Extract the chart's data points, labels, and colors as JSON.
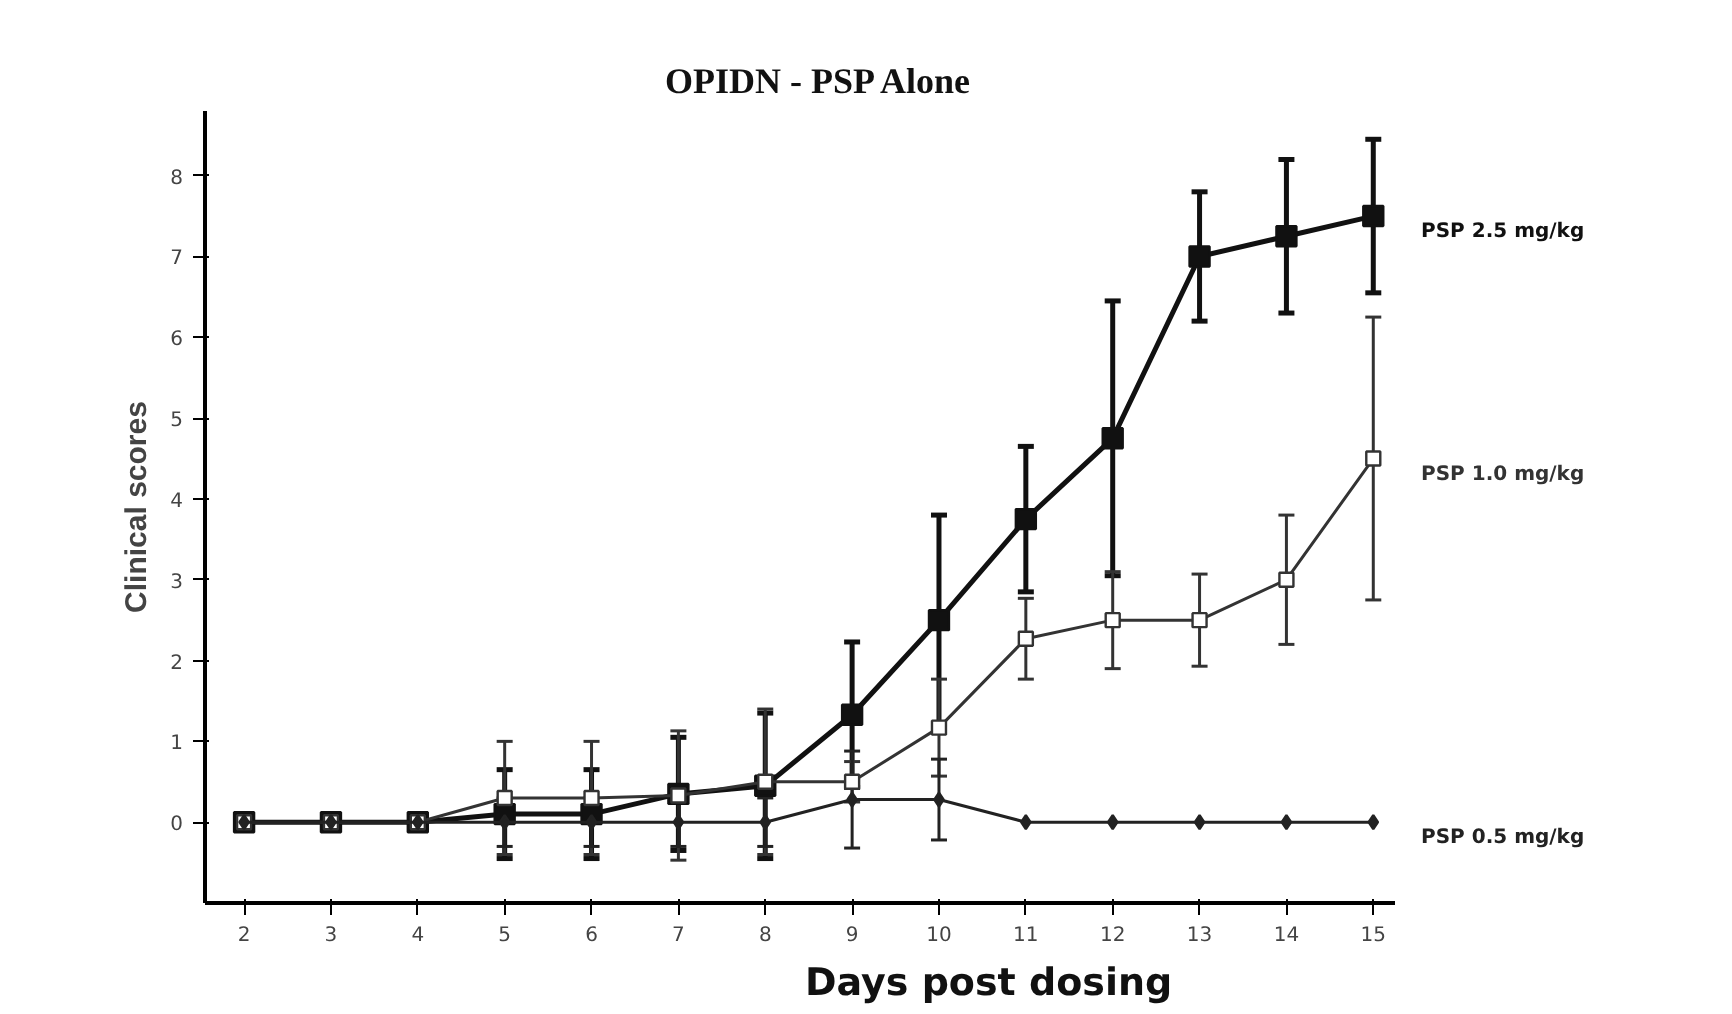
{
  "chart_data": {
    "type": "line",
    "title": "OPIDN - PSP Alone",
    "xlabel": "Days post dosing",
    "ylabel": "Clinical scores",
    "x": [
      2,
      3,
      4,
      5,
      6,
      7,
      8,
      9,
      10,
      11,
      12,
      13,
      14,
      15
    ],
    "series": [
      {
        "name": "PSP 2.5 mg/kg",
        "color": "#111111",
        "marker": "square",
        "values": [
          0,
          0,
          0,
          0.1,
          0.1,
          0.35,
          0.45,
          1.33,
          2.5,
          3.75,
          4.75,
          7.0,
          7.25,
          7.5
        ],
        "errors": [
          null,
          null,
          null,
          0.55,
          0.55,
          0.7,
          0.9,
          0.9,
          1.3,
          0.9,
          1.7,
          0.8,
          0.95,
          0.95
        ]
      },
      {
        "name": "PSP 1.0 mg/kg",
        "color": "#333333",
        "marker": "square",
        "values": [
          0,
          0,
          0,
          0.3,
          0.3,
          0.33,
          0.5,
          0.5,
          1.17,
          2.27,
          2.5,
          2.5,
          3.0,
          4.5
        ],
        "errors": [
          null,
          null,
          null,
          0.7,
          0.7,
          0.8,
          0.9,
          0.25,
          0.6,
          0.5,
          0.6,
          0.57,
          0.8,
          1.75
        ]
      },
      {
        "name": "PSP 0.5 mg/kg",
        "color": "#222222",
        "marker": "diamond",
        "values": [
          0,
          0,
          0,
          0,
          0,
          0,
          0,
          0.28,
          0.28,
          0,
          0,
          0,
          0,
          0
        ],
        "errors": [
          null,
          null,
          null,
          0.3,
          0.3,
          0.3,
          0.3,
          0.6,
          0.5,
          null,
          null,
          null,
          null,
          null
        ]
      }
    ],
    "xlim": [
      1.55,
      15.25
    ],
    "ylim": [
      -1,
      8.8
    ],
    "xticks": [
      2,
      3,
      4,
      5,
      6,
      7,
      8,
      9,
      10,
      11,
      12,
      13,
      14,
      15
    ],
    "yticks": [
      0,
      1,
      2,
      3,
      4,
      5,
      6,
      7,
      8
    ],
    "grid": false
  }
}
